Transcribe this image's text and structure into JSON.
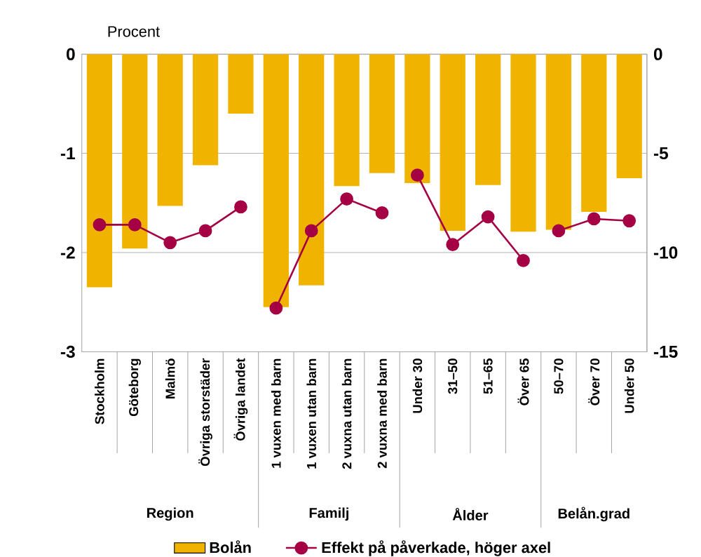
{
  "chart_data": {
    "type": "bar",
    "ylabel": "Procent",
    "categories": [
      "Stockholm",
      "Göteborg",
      "Malmö",
      "Övriga storstäder",
      "Övriga landet",
      "1 vuxen med barn",
      "1 vuxen utan barn",
      "2 vuxna utan barn",
      "2 vuxna med barn",
      "Under 30",
      "31–50",
      "51–65",
      "Över 65",
      "50–70",
      "Över 70",
      "Under 50"
    ],
    "series": [
      {
        "name": "Bolån",
        "color": "#f0b400",
        "values": [
          -2.35,
          -1.96,
          -1.53,
          -1.12,
          -0.6,
          -2.55,
          -2.33,
          -1.33,
          -1.2,
          -1.3,
          -1.78,
          -1.32,
          -1.79,
          -1.77,
          -1.59,
          -1.25
        ]
      },
      {
        "name": "Effekt på påverkade, höger axel",
        "type": "line",
        "axis": "y2",
        "color": "#a50044",
        "values": [
          -8.6,
          -8.6,
          -9.5,
          -8.9,
          -7.7,
          null,
          null,
          null,
          null,
          null,
          null,
          null,
          null,
          null,
          null,
          null
        ]
      },
      {
        "type": "line",
        "axis": "y2",
        "color": "#a50044",
        "values": [
          null,
          null,
          null,
          null,
          null,
          -12.8,
          -8.9,
          -7.3,
          -8.0,
          null,
          null,
          null,
          null,
          null,
          null,
          null
        ]
      },
      {
        "type": "line",
        "axis": "y2",
        "color": "#a50044",
        "values": [
          null,
          null,
          null,
          null,
          null,
          null,
          null,
          null,
          null,
          -6.1,
          -9.6,
          -8.2,
          -10.4,
          null,
          null,
          null
        ]
      },
      {
        "type": "line",
        "axis": "y2",
        "color": "#a50044",
        "values": [
          null,
          null,
          null,
          null,
          null,
          null,
          null,
          null,
          null,
          null,
          null,
          null,
          null,
          -8.9,
          -8.3,
          -8.4
        ]
      }
    ],
    "ylim": [
      -3,
      0
    ],
    "yticks": [
      -3,
      -2,
      -1,
      0
    ],
    "y2lim": [
      -15,
      0
    ],
    "y2ticks": [
      -15,
      -10,
      -5,
      0
    ],
    "grid": "y",
    "legend": "bottom",
    "marker": "circle",
    "annotations": [
      "Region",
      "Familj",
      "Ålder",
      "Belån.grad"
    ]
  }
}
